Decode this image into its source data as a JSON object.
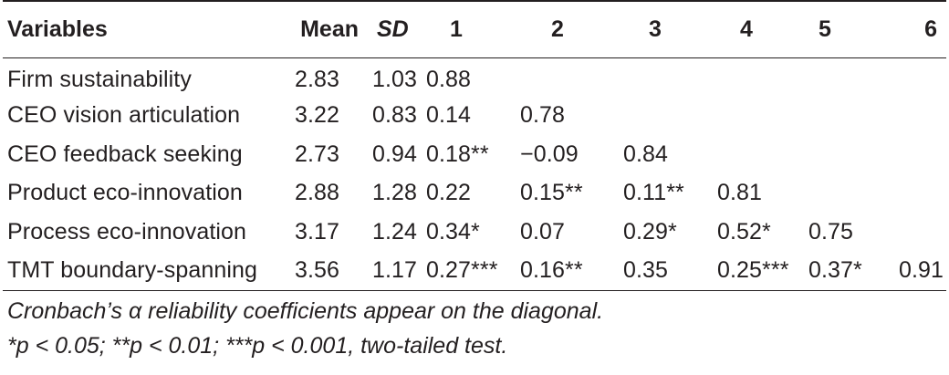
{
  "table": {
    "headers": {
      "variables": "Variables",
      "mean": "Mean",
      "sd": "SD",
      "c1": "1",
      "c2": "2",
      "c3": "3",
      "c4": "4",
      "c5": "5",
      "c6": "6"
    },
    "rows": [
      {
        "name": "Firm sustainability",
        "mean": "2.83",
        "sd": "1.03",
        "c1": "0.88",
        "c2": "",
        "c3": "",
        "c4": "",
        "c5": "",
        "c6": ""
      },
      {
        "name": "CEO vision articulation",
        "mean": "3.22",
        "sd": "0.83",
        "c1": "0.14",
        "c2": "0.78",
        "c3": "",
        "c4": "",
        "c5": "",
        "c6": ""
      },
      {
        "name": "CEO feedback seeking",
        "mean": "2.73",
        "sd": "0.94",
        "c1": "0.18**",
        "c2": "−0.09",
        "c3": "0.84",
        "c4": "",
        "c5": "",
        "c6": ""
      },
      {
        "name": "Product eco-innovation",
        "mean": "2.88",
        "sd": "1.28",
        "c1": "0.22",
        "c2": "0.15**",
        "c3": "0.11**",
        "c4": "0.81",
        "c5": "",
        "c6": ""
      },
      {
        "name": "Process eco-innovation",
        "mean": "3.17",
        "sd": "1.24",
        "c1": "0.34*",
        "c2": "0.07",
        "c3": "0.29*",
        "c4": "0.52*",
        "c5": "0.75",
        "c6": ""
      },
      {
        "name": "TMT boundary-spanning",
        "mean": "3.56",
        "sd": "1.17",
        "c1": "0.27***",
        "c2": "0.16**",
        "c3": "0.35",
        "c4": "0.25***",
        "c5": "0.37*",
        "c6": "0.91"
      }
    ]
  },
  "notes": {
    "line1": "Cronbach’s α reliability coefficients appear on the diagonal.",
    "line2": "*p < 0.05; **p < 0.01; ***p < 0.001, two-tailed test."
  }
}
